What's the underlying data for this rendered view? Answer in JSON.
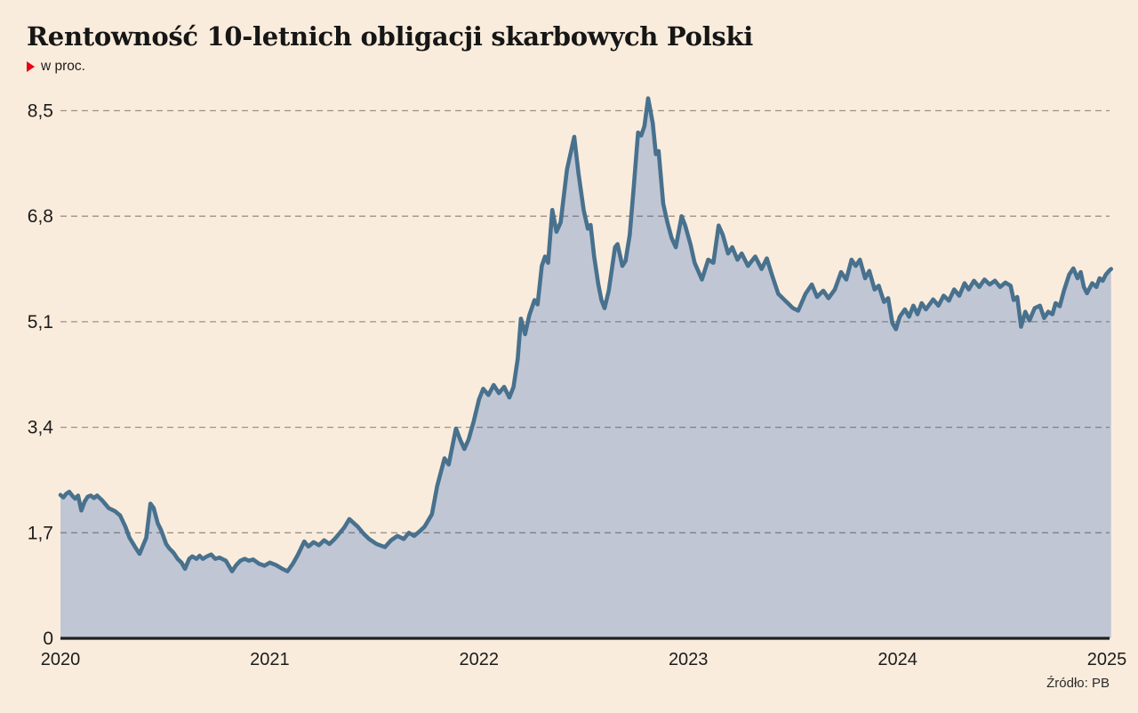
{
  "header": {
    "title": "Rentowność 10-letnich obligacji skarbowych Polski",
    "subtitle": "w proc."
  },
  "source": "Źródło: PB",
  "colors": {
    "background": "#faecdc",
    "area_fill": "#c0c6d4",
    "line": "#48718e",
    "grid": "rgba(72,63,54,0.52)",
    "axis": "#20201e",
    "tick_text": "#1c1c1c",
    "marker_red": "#e60012"
  },
  "chart_data": {
    "type": "area",
    "title": "Rentowność 10-letnich obligacji skarbowych Polski",
    "ylabel": "w proc.",
    "xlabel": "",
    "ylim": [
      0,
      8.93
    ],
    "xlim": [
      2020.0,
      2025.03
    ],
    "grid": "horizontal-dashed",
    "legend_position": "none",
    "yticks": [
      {
        "value": 0,
        "label": "0"
      },
      {
        "value": 1.7,
        "label": "1,7"
      },
      {
        "value": 3.4,
        "label": "3,4"
      },
      {
        "value": 5.1,
        "label": "5,1"
      },
      {
        "value": 6.8,
        "label": "6,8"
      },
      {
        "value": 8.5,
        "label": "8,5"
      }
    ],
    "xticks": [
      {
        "value": 2020,
        "label": "2020"
      },
      {
        "value": 2021,
        "label": "2021"
      },
      {
        "value": 2022,
        "label": "2022"
      },
      {
        "value": 2023,
        "label": "2023"
      },
      {
        "value": 2024,
        "label": "2024"
      },
      {
        "value": 2025,
        "label": "2025"
      }
    ],
    "series": [
      {
        "name": "Rentowność 10-letnich obligacji skarbowych Polski (proc.)",
        "points": [
          [
            2020.0,
            2.31
          ],
          [
            2020.014,
            2.27
          ],
          [
            2020.028,
            2.33
          ],
          [
            2020.042,
            2.36
          ],
          [
            2020.056,
            2.3
          ],
          [
            2020.07,
            2.25
          ],
          [
            2020.084,
            2.3
          ],
          [
            2020.1,
            2.06
          ],
          [
            2020.115,
            2.2
          ],
          [
            2020.13,
            2.28
          ],
          [
            2020.145,
            2.3
          ],
          [
            2020.16,
            2.26
          ],
          [
            2020.175,
            2.3
          ],
          [
            2020.2,
            2.22
          ],
          [
            2020.23,
            2.1
          ],
          [
            2020.26,
            2.05
          ],
          [
            2020.285,
            1.98
          ],
          [
            2020.31,
            1.8
          ],
          [
            2020.33,
            1.62
          ],
          [
            2020.355,
            1.48
          ],
          [
            2020.378,
            1.36
          ],
          [
            2020.395,
            1.5
          ],
          [
            2020.41,
            1.62
          ],
          [
            2020.43,
            2.17
          ],
          [
            2020.445,
            2.1
          ],
          [
            2020.465,
            1.85
          ],
          [
            2020.48,
            1.75
          ],
          [
            2020.505,
            1.52
          ],
          [
            2020.52,
            1.45
          ],
          [
            2020.54,
            1.38
          ],
          [
            2020.56,
            1.28
          ],
          [
            2020.578,
            1.22
          ],
          [
            2020.595,
            1.12
          ],
          [
            2020.615,
            1.28
          ],
          [
            2020.63,
            1.32
          ],
          [
            2020.65,
            1.28
          ],
          [
            2020.665,
            1.33
          ],
          [
            2020.68,
            1.28
          ],
          [
            2020.7,
            1.32
          ],
          [
            2020.72,
            1.35
          ],
          [
            2020.74,
            1.28
          ],
          [
            2020.76,
            1.3
          ],
          [
            2020.79,
            1.25
          ],
          [
            2020.82,
            1.08
          ],
          [
            2020.84,
            1.18
          ],
          [
            2020.86,
            1.25
          ],
          [
            2020.88,
            1.28
          ],
          [
            2020.9,
            1.25
          ],
          [
            2020.92,
            1.27
          ],
          [
            2020.95,
            1.2
          ],
          [
            2020.975,
            1.17
          ],
          [
            2021.0,
            1.22
          ],
          [
            2021.03,
            1.18
          ],
          [
            2021.06,
            1.12
          ],
          [
            2021.085,
            1.08
          ],
          [
            2021.11,
            1.2
          ],
          [
            2021.135,
            1.35
          ],
          [
            2021.165,
            1.56
          ],
          [
            2021.185,
            1.48
          ],
          [
            2021.21,
            1.55
          ],
          [
            2021.235,
            1.5
          ],
          [
            2021.26,
            1.58
          ],
          [
            2021.285,
            1.52
          ],
          [
            2021.31,
            1.6
          ],
          [
            2021.33,
            1.68
          ],
          [
            2021.355,
            1.78
          ],
          [
            2021.38,
            1.92
          ],
          [
            2021.4,
            1.86
          ],
          [
            2021.42,
            1.8
          ],
          [
            2021.45,
            1.68
          ],
          [
            2021.475,
            1.6
          ],
          [
            2021.51,
            1.52
          ],
          [
            2021.55,
            1.47
          ],
          [
            2021.58,
            1.58
          ],
          [
            2021.61,
            1.65
          ],
          [
            2021.64,
            1.6
          ],
          [
            2021.665,
            1.7
          ],
          [
            2021.69,
            1.65
          ],
          [
            2021.715,
            1.72
          ],
          [
            2021.74,
            1.8
          ],
          [
            2021.775,
            2.0
          ],
          [
            2021.8,
            2.45
          ],
          [
            2021.835,
            2.9
          ],
          [
            2021.855,
            2.8
          ],
          [
            2021.87,
            3.05
          ],
          [
            2021.89,
            3.38
          ],
          [
            2021.91,
            3.2
          ],
          [
            2021.93,
            3.05
          ],
          [
            2021.95,
            3.2
          ],
          [
            2021.975,
            3.5
          ],
          [
            2022.0,
            3.85
          ],
          [
            2022.02,
            4.02
          ],
          [
            2022.045,
            3.92
          ],
          [
            2022.07,
            4.08
          ],
          [
            2022.095,
            3.95
          ],
          [
            2022.12,
            4.05
          ],
          [
            2022.145,
            3.88
          ],
          [
            2022.165,
            4.05
          ],
          [
            2022.185,
            4.5
          ],
          [
            2022.2,
            5.15
          ],
          [
            2022.22,
            4.9
          ],
          [
            2022.24,
            5.2
          ],
          [
            2022.265,
            5.45
          ],
          [
            2022.28,
            5.38
          ],
          [
            2022.3,
            6.0
          ],
          [
            2022.315,
            6.15
          ],
          [
            2022.33,
            6.05
          ],
          [
            2022.35,
            6.9
          ],
          [
            2022.37,
            6.55
          ],
          [
            2022.39,
            6.7
          ],
          [
            2022.42,
            7.55
          ],
          [
            2022.455,
            8.08
          ],
          [
            2022.475,
            7.5
          ],
          [
            2022.5,
            6.9
          ],
          [
            2022.52,
            6.6
          ],
          [
            2022.533,
            6.66
          ],
          [
            2022.55,
            6.15
          ],
          [
            2022.57,
            5.7
          ],
          [
            2022.585,
            5.45
          ],
          [
            2022.6,
            5.32
          ],
          [
            2022.62,
            5.6
          ],
          [
            2022.65,
            6.3
          ],
          [
            2022.662,
            6.35
          ],
          [
            2022.685,
            6.0
          ],
          [
            2022.7,
            6.08
          ],
          [
            2022.72,
            6.5
          ],
          [
            2022.74,
            7.3
          ],
          [
            2022.76,
            8.15
          ],
          [
            2022.775,
            8.1
          ],
          [
            2022.79,
            8.25
          ],
          [
            2022.808,
            8.7
          ],
          [
            2022.83,
            8.3
          ],
          [
            2022.845,
            7.8
          ],
          [
            2022.858,
            7.85
          ],
          [
            2022.88,
            7.0
          ],
          [
            2022.9,
            6.7
          ],
          [
            2022.92,
            6.45
          ],
          [
            2022.94,
            6.3
          ],
          [
            2022.968,
            6.8
          ],
          [
            2022.985,
            6.65
          ],
          [
            2023.01,
            6.35
          ],
          [
            2023.03,
            6.05
          ],
          [
            2023.065,
            5.78
          ],
          [
            2023.095,
            6.1
          ],
          [
            2023.12,
            6.05
          ],
          [
            2023.145,
            6.65
          ],
          [
            2023.165,
            6.5
          ],
          [
            2023.19,
            6.2
          ],
          [
            2023.21,
            6.3
          ],
          [
            2023.235,
            6.1
          ],
          [
            2023.255,
            6.2
          ],
          [
            2023.285,
            6.0
          ],
          [
            2023.32,
            6.15
          ],
          [
            2023.35,
            5.95
          ],
          [
            2023.375,
            6.12
          ],
          [
            2023.4,
            5.85
          ],
          [
            2023.43,
            5.55
          ],
          [
            2023.46,
            5.45
          ],
          [
            2023.5,
            5.32
          ],
          [
            2023.525,
            5.28
          ],
          [
            2023.56,
            5.55
          ],
          [
            2023.59,
            5.7
          ],
          [
            2023.615,
            5.5
          ],
          [
            2023.645,
            5.6
          ],
          [
            2023.67,
            5.48
          ],
          [
            2023.7,
            5.62
          ],
          [
            2023.73,
            5.9
          ],
          [
            2023.755,
            5.78
          ],
          [
            2023.78,
            6.1
          ],
          [
            2023.8,
            6.0
          ],
          [
            2023.82,
            6.1
          ],
          [
            2023.845,
            5.8
          ],
          [
            2023.865,
            5.92
          ],
          [
            2023.89,
            5.62
          ],
          [
            2023.91,
            5.68
          ],
          [
            2023.935,
            5.42
          ],
          [
            2023.955,
            5.48
          ],
          [
            2023.975,
            5.08
          ],
          [
            2023.992,
            4.98
          ],
          [
            2024.01,
            5.18
          ],
          [
            2024.035,
            5.3
          ],
          [
            2024.055,
            5.18
          ],
          [
            2024.075,
            5.36
          ],
          [
            2024.095,
            5.22
          ],
          [
            2024.115,
            5.4
          ],
          [
            2024.135,
            5.3
          ],
          [
            2024.17,
            5.46
          ],
          [
            2024.195,
            5.36
          ],
          [
            2024.22,
            5.52
          ],
          [
            2024.245,
            5.44
          ],
          [
            2024.27,
            5.62
          ],
          [
            2024.295,
            5.52
          ],
          [
            2024.32,
            5.72
          ],
          [
            2024.34,
            5.62
          ],
          [
            2024.365,
            5.76
          ],
          [
            2024.39,
            5.66
          ],
          [
            2024.415,
            5.78
          ],
          [
            2024.44,
            5.7
          ],
          [
            2024.465,
            5.76
          ],
          [
            2024.49,
            5.66
          ],
          [
            2024.515,
            5.73
          ],
          [
            2024.54,
            5.68
          ],
          [
            2024.555,
            5.45
          ],
          [
            2024.572,
            5.5
          ],
          [
            2024.59,
            5.02
          ],
          [
            2024.61,
            5.26
          ],
          [
            2024.63,
            5.12
          ],
          [
            2024.655,
            5.32
          ],
          [
            2024.68,
            5.36
          ],
          [
            2024.7,
            5.16
          ],
          [
            2024.72,
            5.26
          ],
          [
            2024.74,
            5.22
          ],
          [
            2024.755,
            5.4
          ],
          [
            2024.775,
            5.35
          ],
          [
            2024.795,
            5.6
          ],
          [
            2024.82,
            5.86
          ],
          [
            2024.84,
            5.96
          ],
          [
            2024.86,
            5.8
          ],
          [
            2024.875,
            5.9
          ],
          [
            2024.89,
            5.66
          ],
          [
            2024.905,
            5.56
          ],
          [
            2024.93,
            5.72
          ],
          [
            2024.95,
            5.66
          ],
          [
            2024.965,
            5.8
          ],
          [
            2024.98,
            5.76
          ],
          [
            2024.995,
            5.86
          ],
          [
            2025.01,
            5.92
          ],
          [
            2025.02,
            5.95
          ]
        ]
      }
    ]
  }
}
